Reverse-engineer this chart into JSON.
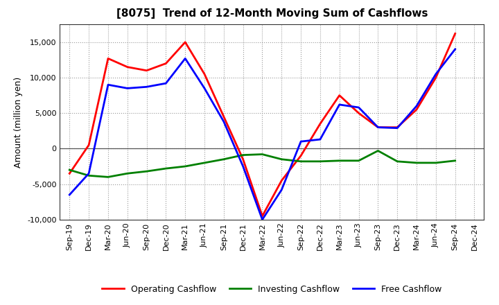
{
  "title": "[8075]  Trend of 12-Month Moving Sum of Cashflows",
  "ylabel": "Amount (million yen)",
  "background_color": "#ffffff",
  "plot_bg_color": "#ffffff",
  "grid_color": "#999999",
  "ylim": [
    -10000,
    17500
  ],
  "yticks": [
    -10000,
    -5000,
    0,
    5000,
    10000,
    15000
  ],
  "labels": [
    "Sep-19",
    "Dec-19",
    "Mar-20",
    "Jun-20",
    "Sep-20",
    "Dec-20",
    "Mar-21",
    "Jun-21",
    "Sep-21",
    "Dec-21",
    "Mar-22",
    "Jun-22",
    "Sep-22",
    "Dec-22",
    "Mar-23",
    "Jun-23",
    "Sep-23",
    "Dec-23",
    "Mar-24",
    "Jun-24",
    "Sep-24",
    "Dec-24"
  ],
  "operating": [
    -3500,
    500,
    12700,
    11500,
    11000,
    12000,
    15000,
    10500,
    4500,
    -1500,
    -9500,
    -4500,
    -1000,
    3500,
    7500,
    5000,
    3000,
    3000,
    5500,
    10000,
    16200,
    null
  ],
  "investing": [
    -3000,
    -3800,
    -4000,
    -3500,
    -3200,
    -2800,
    -2500,
    -2000,
    -1500,
    -900,
    -800,
    -1500,
    -1800,
    -1800,
    -1700,
    -1700,
    -300,
    -1800,
    -2000,
    -2000,
    -1700,
    null
  ],
  "free": [
    -6500,
    -3500,
    9000,
    8500,
    8700,
    9200,
    12700,
    8500,
    3800,
    -2500,
    -10000,
    -5800,
    1000,
    1300,
    6200,
    5800,
    3000,
    2900,
    6000,
    10500,
    14000,
    null
  ],
  "legend_labels": [
    "Operating Cashflow",
    "Investing Cashflow",
    "Free Cashflow"
  ],
  "line_colors": [
    "#ff0000",
    "#008000",
    "#0000ff"
  ],
  "line_width": 2.0
}
